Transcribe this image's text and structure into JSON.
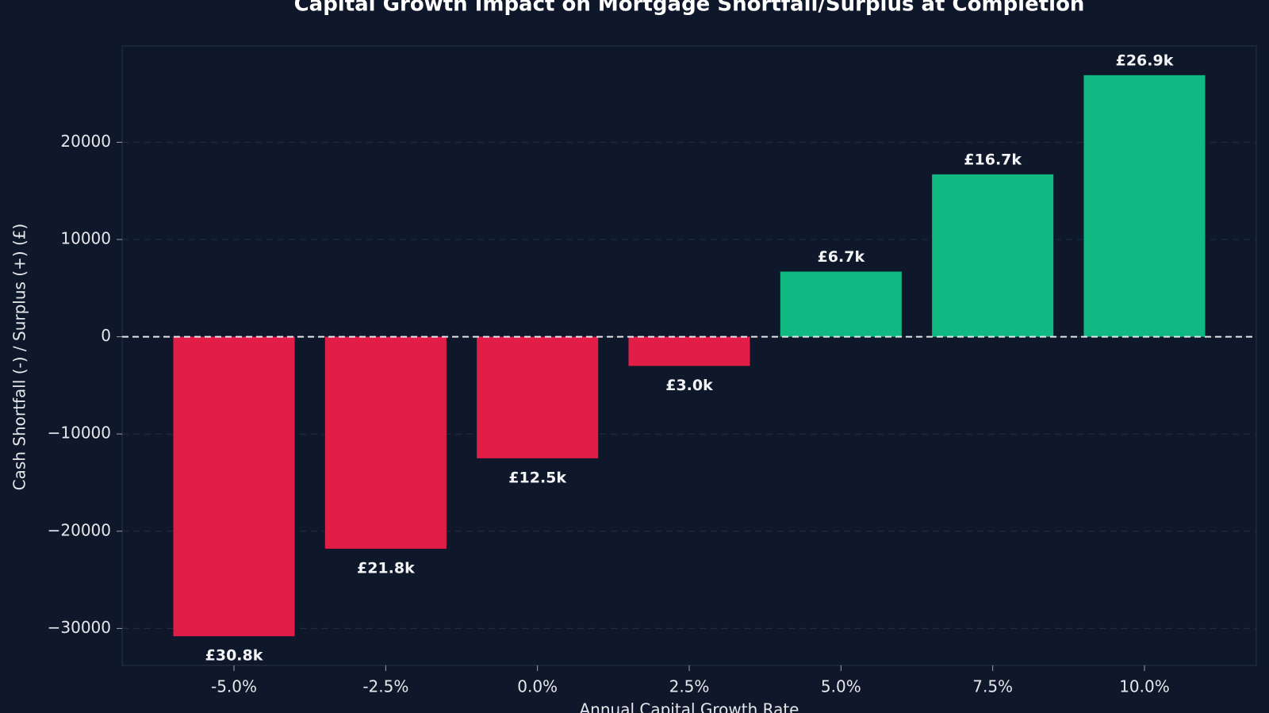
{
  "chart_data": {
    "type": "bar",
    "title": "Capital Growth Impact on Mortgage Shortfall/Surplus at Completion",
    "x_label": "Annual Capital Growth Rate",
    "y_label": "Cash Shortfall (-) / Surplus (+) (£)",
    "categories": [
      "-5.0%",
      "-2.5%",
      "0.0%",
      "2.5%",
      "5.0%",
      "7.5%",
      "10.0%"
    ],
    "values": [
      -30800,
      -21800,
      -12500,
      -3000,
      6700,
      16700,
      26900
    ],
    "value_labels": [
      "£30.8k",
      "£21.8k",
      "£12.5k",
      "£3.0k",
      "£6.7k",
      "£16.7k",
      "£26.9k"
    ],
    "colors": [
      "#e11d48",
      "#e11d48",
      "#e11d48",
      "#e11d48",
      "#10b981",
      "#10b981",
      "#10b981"
    ],
    "ylim": [
      -33800,
      29900
    ],
    "yticks": [
      {
        "value": -30000,
        "label": "−30000"
      },
      {
        "value": -20000,
        "label": "−20000"
      },
      {
        "value": -10000,
        "label": "−10000"
      },
      0,
      10000,
      20000
    ],
    "grid": true
  }
}
